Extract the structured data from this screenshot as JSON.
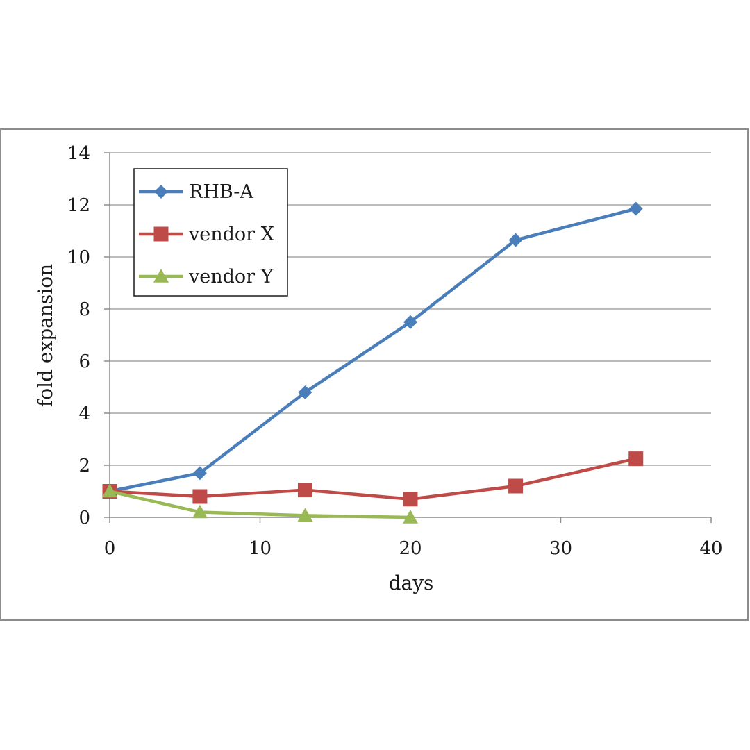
{
  "chart_data": {
    "type": "line",
    "title": "",
    "xlabel": "days",
    "ylabel": "fold expansion",
    "xlim": [
      0,
      40
    ],
    "ylim": [
      0,
      14
    ],
    "xticks": [
      0,
      10,
      20,
      30,
      40
    ],
    "yticks": [
      0,
      2,
      4,
      6,
      8,
      10,
      12,
      14
    ],
    "grid": "horizontal",
    "legend_position": "top-left",
    "series": [
      {
        "name": "RHB-A",
        "marker": "diamond",
        "color": "#4a7ebb",
        "x": [
          0,
          6,
          13,
          20,
          27,
          35
        ],
        "y": [
          1.0,
          1.7,
          4.8,
          7.5,
          10.65,
          11.85
        ]
      },
      {
        "name": "vendor X",
        "marker": "square",
        "color": "#be4b48",
        "x": [
          0,
          6,
          13,
          20,
          27,
          35
        ],
        "y": [
          1.0,
          0.8,
          1.05,
          0.7,
          1.2,
          2.25
        ]
      },
      {
        "name": "vendor Y",
        "marker": "triangle",
        "color": "#98b954",
        "x": [
          0,
          6,
          13,
          20
        ],
        "y": [
          1.0,
          0.2,
          0.07,
          0.0
        ]
      }
    ]
  }
}
